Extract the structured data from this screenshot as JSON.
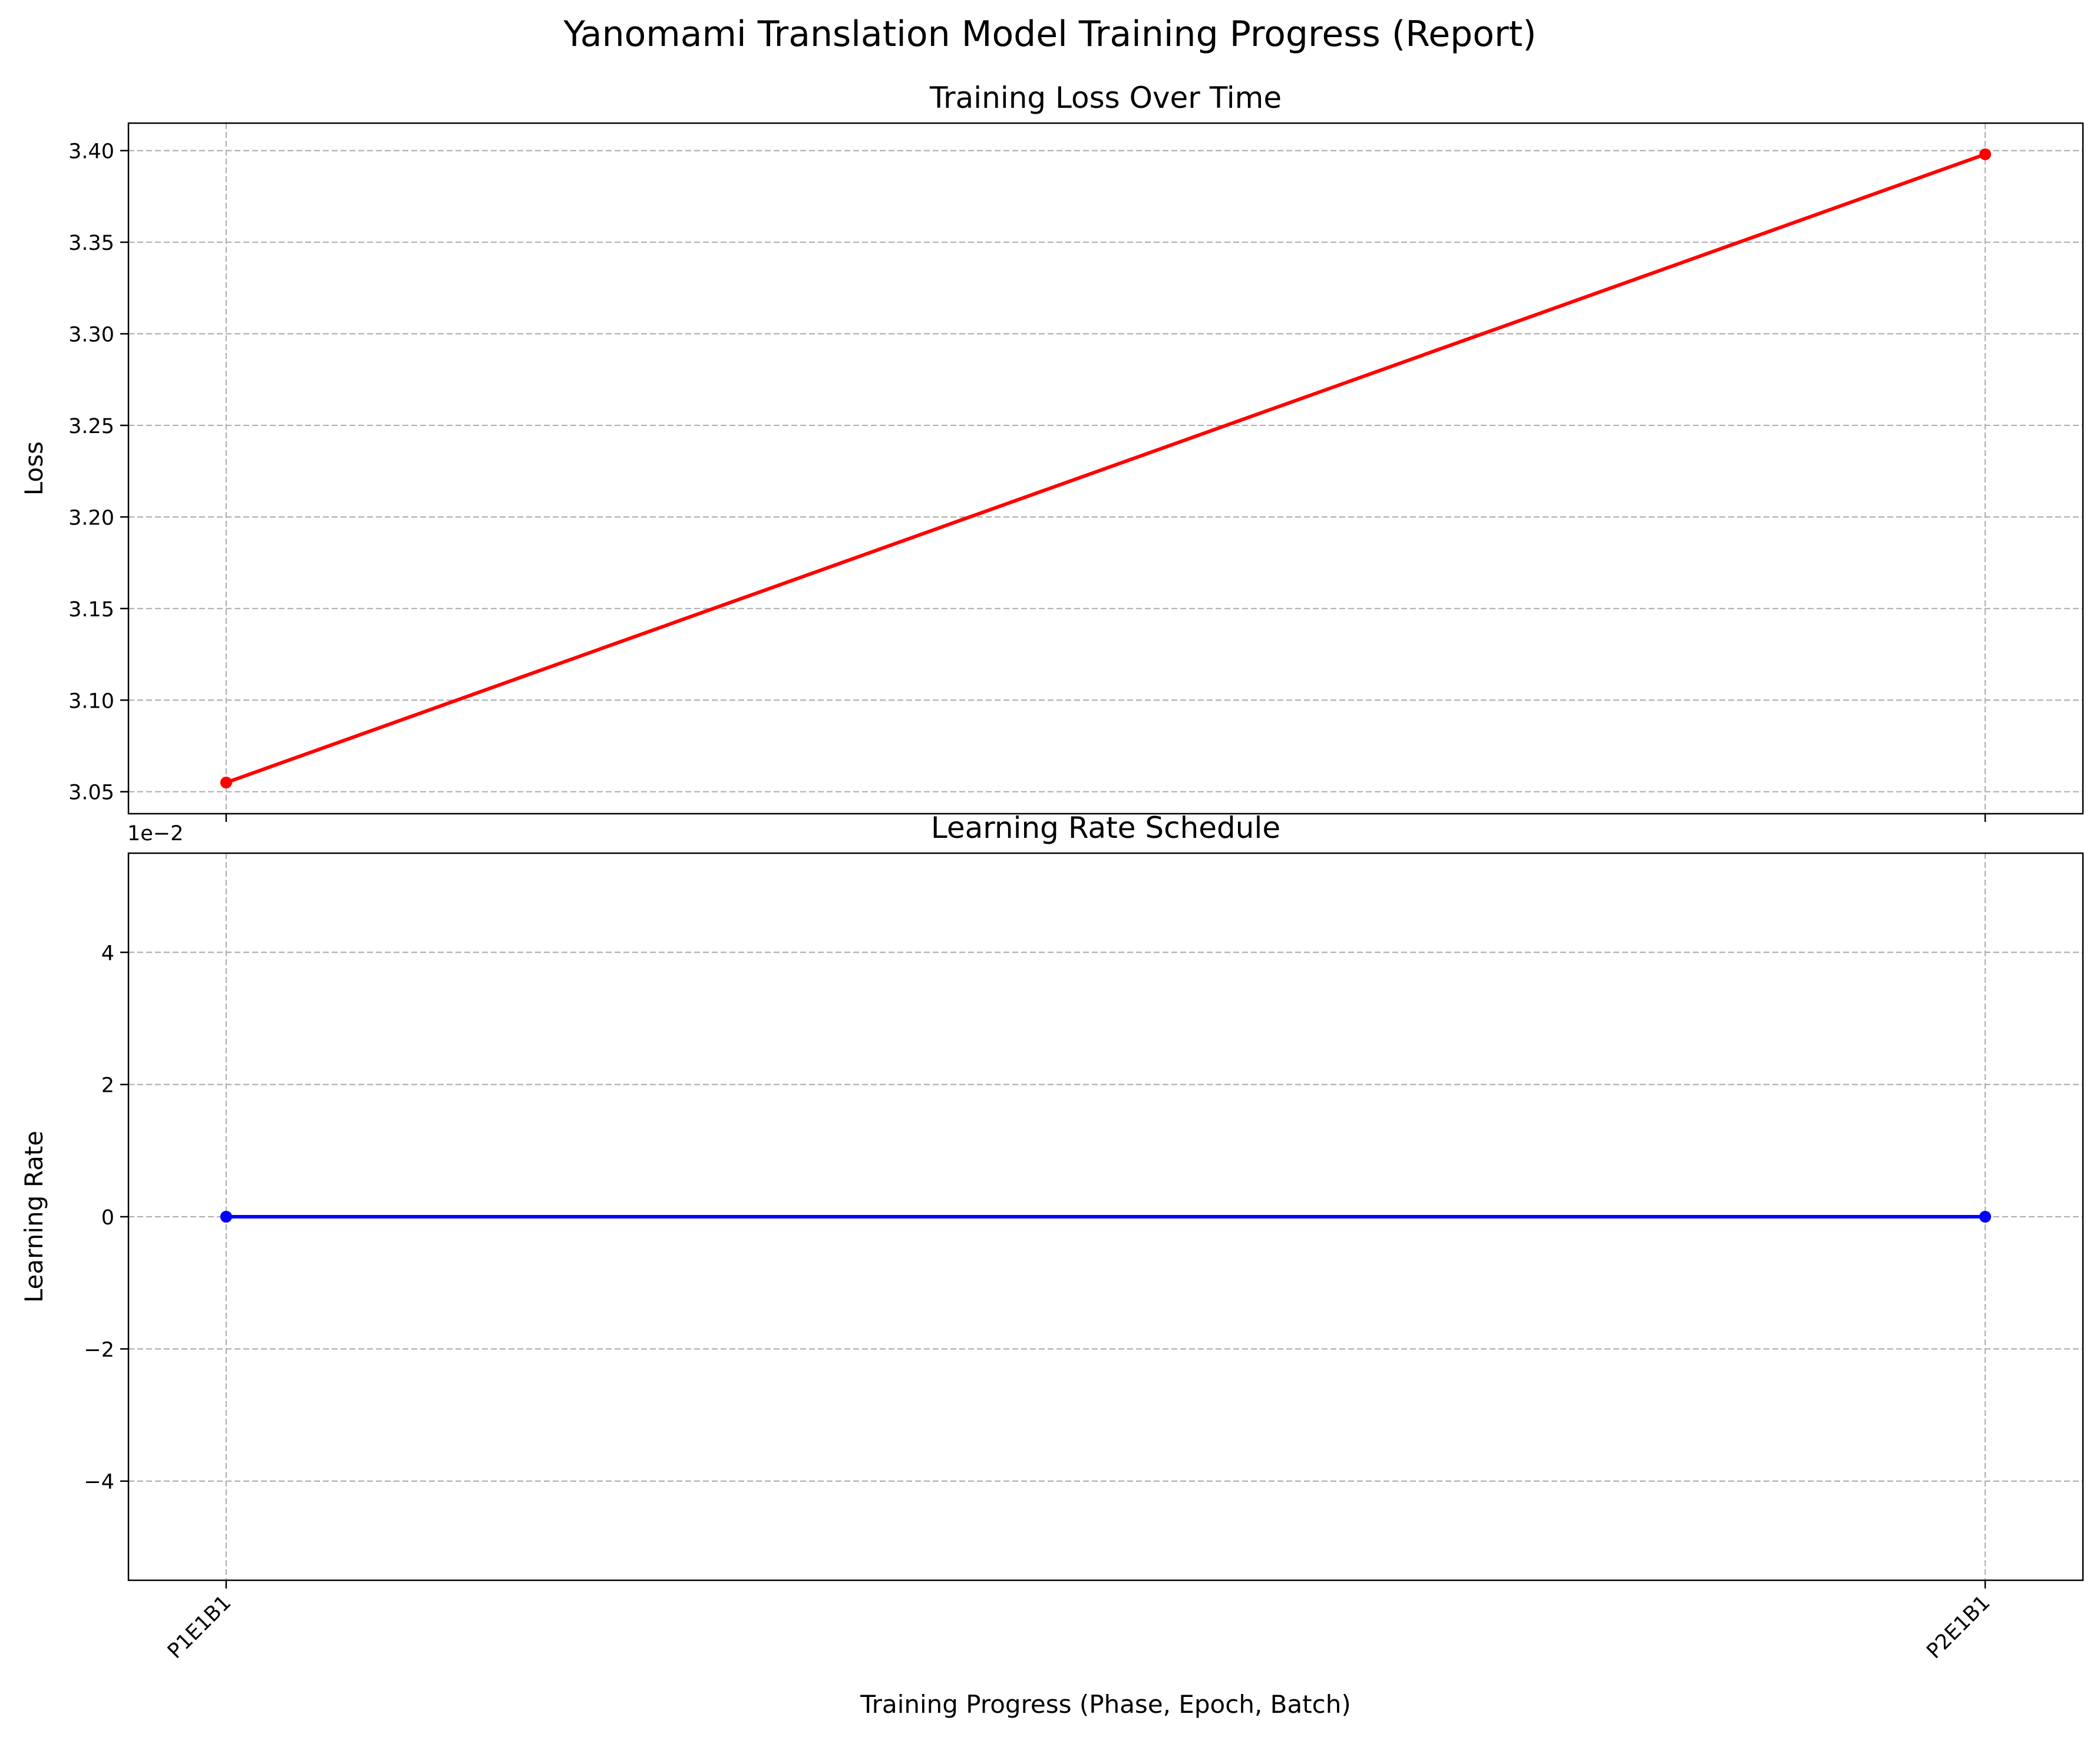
{
  "figure": {
    "suptitle": "Yanomami Translation Model Training Progress (Report)"
  },
  "chart_data": [
    {
      "type": "line",
      "title": "Training Loss Over Time",
      "xlabel": "",
      "ylabel": "Loss",
      "categories": [
        "P1E1B1",
        "P2E1B1"
      ],
      "series": [
        {
          "values": [
            3.055,
            3.398
          ],
          "color": "#ff0000",
          "marker": "circle"
        }
      ],
      "ylim": [
        3.038,
        3.415
      ],
      "yticks": [
        3.05,
        3.1,
        3.15,
        3.2,
        3.25,
        3.3,
        3.35,
        3.4
      ],
      "ytick_labels": [
        "3.05",
        "3.10",
        "3.15",
        "3.20",
        "3.25",
        "3.30",
        "3.35",
        "3.40"
      ],
      "show_xtick_labels": false,
      "grid": true
    },
    {
      "type": "line",
      "title": "Learning Rate Schedule",
      "xlabel": "Training Progress (Phase, Epoch, Batch)",
      "ylabel": "Learning Rate",
      "categories": [
        "P1E1B1",
        "P2E1B1"
      ],
      "series": [
        {
          "values": [
            0,
            0
          ],
          "color": "#0000ff",
          "marker": "circle"
        }
      ],
      "ylim": [
        -0.055,
        0.055
      ],
      "yticks": [
        -0.04,
        -0.02,
        0,
        0.02,
        0.04
      ],
      "ytick_labels": [
        "−4",
        "−2",
        "0",
        "2",
        "4"
      ],
      "offset_text": "1e−2",
      "show_xtick_labels": true,
      "grid": true
    }
  ]
}
